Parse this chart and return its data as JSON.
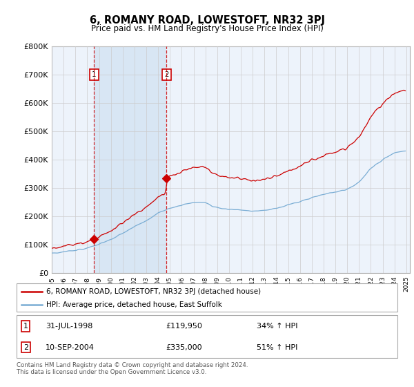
{
  "title": "6, ROMANY ROAD, LOWESTOFT, NR32 3PJ",
  "subtitle": "Price paid vs. HM Land Registry's House Price Index (HPI)",
  "ylim": [
    0,
    800000
  ],
  "yticks": [
    0,
    100000,
    200000,
    300000,
    400000,
    500000,
    600000,
    700000,
    800000
  ],
  "ytick_labels": [
    "£0",
    "£100K",
    "£200K",
    "£300K",
    "£400K",
    "£500K",
    "£600K",
    "£700K",
    "£800K"
  ],
  "red_line_color": "#cc0000",
  "blue_line_color": "#7aadd4",
  "grid_color": "#cccccc",
  "plot_bg": "#edf3fb",
  "shade_color": "#c8ddf0",
  "marker1_year": 1998.58,
  "marker1_value": 119950,
  "marker2_year": 2004.71,
  "marker2_value": 335000,
  "legend_red_label": "6, ROMANY ROAD, LOWESTOFT, NR32 3PJ (detached house)",
  "legend_blue_label": "HPI: Average price, detached house, East Suffolk",
  "note1_date": "31-JUL-1998",
  "note1_price": "£119,950",
  "note1_hpi": "34% ↑ HPI",
  "note2_date": "10-SEP-2004",
  "note2_price": "£335,000",
  "note2_hpi": "51% ↑ HPI",
  "footer": "Contains HM Land Registry data © Crown copyright and database right 2024.\nThis data is licensed under the Open Government Licence v3.0."
}
